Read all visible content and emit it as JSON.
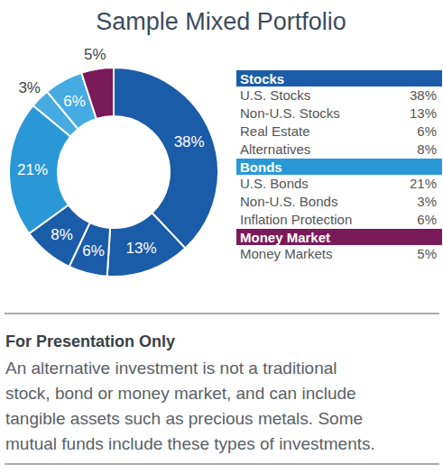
{
  "chart_data": {
    "type": "pie",
    "title": "Sample Mixed Portfolio",
    "data_labels": true,
    "series": [
      {
        "name": "Stocks",
        "color": "#1b5ca8",
        "categories": [
          "U.S. Stocks",
          "Non-U.S. Stocks",
          "Real Estate",
          "Alternatives"
        ],
        "values": [
          38,
          13,
          6,
          8
        ],
        "value_labels": [
          "38%",
          "13%",
          "6%",
          "8%"
        ],
        "colors": [
          "#1b5ca8",
          "#1b5ca8",
          "#1b5ca8",
          "#1b5ca8"
        ]
      },
      {
        "name": "Bonds",
        "color": "#2a98d7",
        "categories": [
          "U.S. Bonds",
          "Non-U.S. Bonds",
          "Inflation Protection"
        ],
        "values": [
          21,
          3,
          6
        ],
        "value_labels": [
          "21%",
          "3%",
          "6%"
        ],
        "colors": [
          "#2a98d7",
          "#45abe2",
          "#45abe2"
        ]
      },
      {
        "name": "Money Market",
        "color": "#7b1a58",
        "categories": [
          "Money Markets"
        ],
        "values": [
          5
        ],
        "value_labels": [
          "5%"
        ],
        "colors": [
          "#7b1a58"
        ]
      }
    ],
    "annotations": [
      {
        "title": "For Presentation Only",
        "lines": [
          "An alternative investment is not a traditional",
          "stock, bond or money market, and can include",
          "tangible assets such as precious metals. Some",
          "mutual funds include these types of investments."
        ]
      }
    ]
  }
}
